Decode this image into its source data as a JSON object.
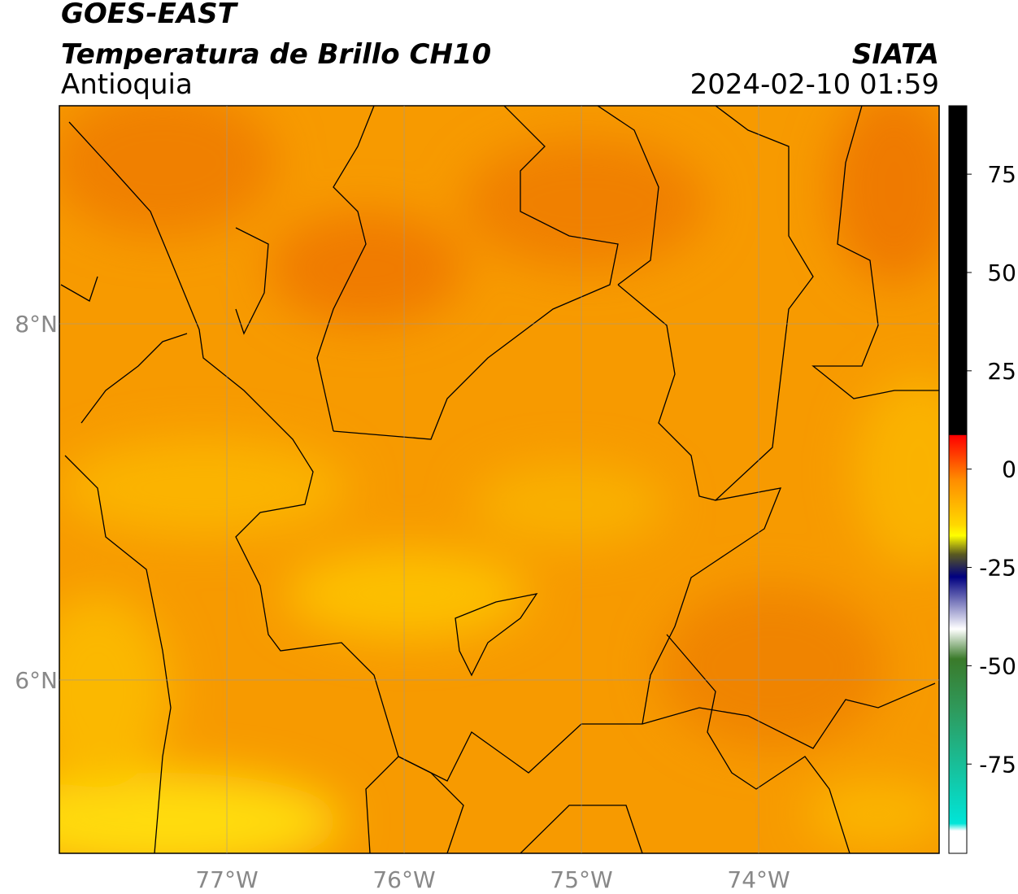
{
  "header": {
    "title": "GOES-EAST",
    "subtitle": "Temperatura de Brillo CH10",
    "region": "Antioquia",
    "source": "SIATA",
    "datetime": "2024-02-10 01:59"
  },
  "map": {
    "xlim": [
      -77.945,
      -72.982
    ],
    "ylim": [
      5.027,
      9.224
    ],
    "xticks": [
      {
        "value": -77,
        "label": "77°W"
      },
      {
        "value": -76,
        "label": "76°W"
      },
      {
        "value": -75,
        "label": "75°W"
      },
      {
        "value": -74,
        "label": "74°W"
      }
    ],
    "yticks": [
      {
        "value": 8,
        "label": "8°N"
      },
      {
        "value": 6,
        "label": "6°N"
      }
    ]
  },
  "colorbar": {
    "lim": [
      -97.7,
      92.4
    ],
    "ticks": [
      75,
      50,
      25,
      0,
      -25,
      -50,
      -75
    ]
  }
}
